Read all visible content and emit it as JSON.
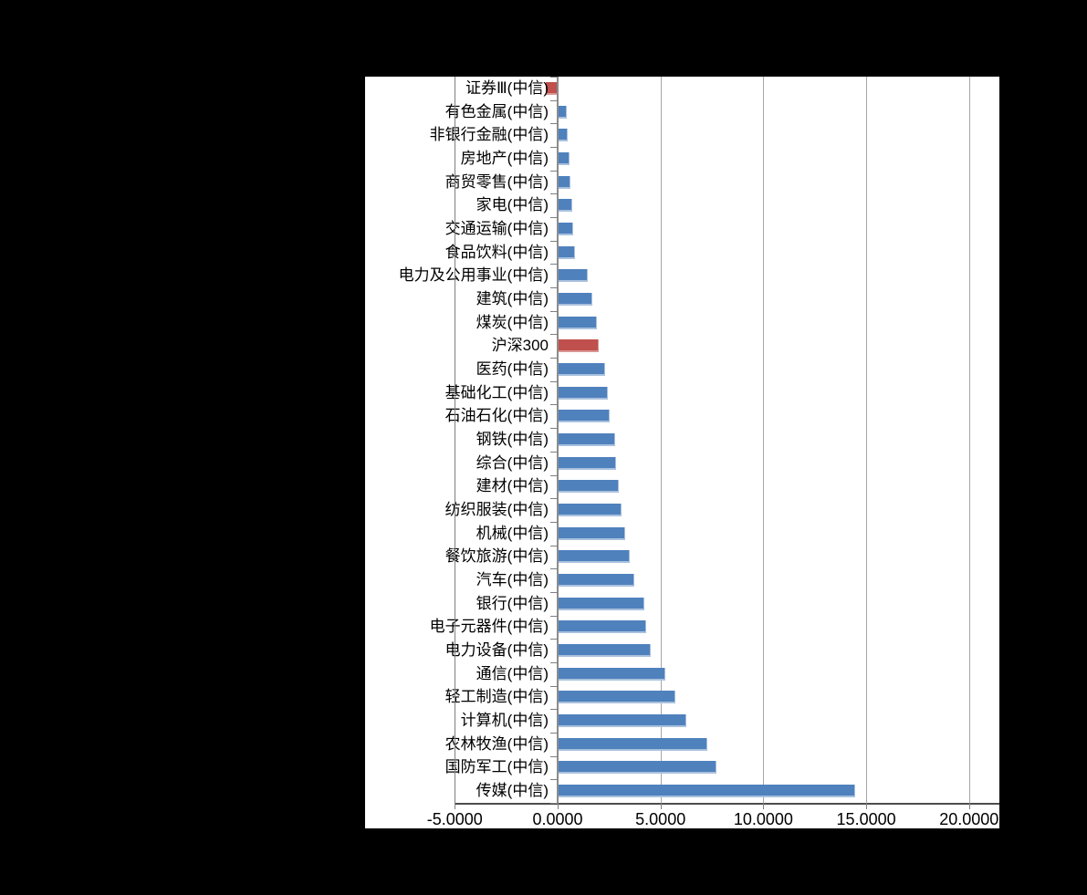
{
  "page": {
    "background_color": "#000000",
    "chart_background_color": "#ffffff"
  },
  "chart_data": {
    "type": "bar",
    "orientation": "horizontal",
    "title": "",
    "xlabel": "",
    "ylabel": "",
    "grid": "vertical-gridlines-on",
    "legend": "none",
    "xlim": [
      -5,
      21.5
    ],
    "x_tick_values": [
      -5,
      0,
      5,
      10,
      15,
      20
    ],
    "x_tick_labels": [
      "-5.0000",
      "0.0000",
      "5.0000",
      "10.0000",
      "15.0000",
      "20.0000"
    ],
    "categories": [
      "证券Ⅲ(中信)",
      "有色金属(中信)",
      "非银行金融(中信)",
      "房地产(中信)",
      "商贸零售(中信)",
      "家电(中信)",
      "交通运输(中信)",
      "食品饮料(中信)",
      "电力及公用事业(中信)",
      "建筑(中信)",
      "煤炭(中信)",
      "沪深300",
      "医药(中信)",
      "基础化工(中信)",
      "石油石化(中信)",
      "钢铁(中信)",
      "综合(中信)",
      "建材(中信)",
      "纺织服装(中信)",
      "机械(中信)",
      "餐饮旅游(中信)",
      "汽车(中信)",
      "银行(中信)",
      "电子元器件(中信)",
      "电力设备(中信)",
      "通信(中信)",
      "轻工制造(中信)",
      "计算机(中信)",
      "农林牧渔(中信)",
      "国防军工(中信)",
      "传媒(中信)"
    ],
    "values": [
      -0.6,
      0.4,
      0.45,
      0.55,
      0.58,
      0.65,
      0.72,
      0.78,
      1.4,
      1.65,
      1.85,
      1.93,
      2.28,
      2.4,
      2.48,
      2.75,
      2.8,
      2.92,
      3.05,
      3.22,
      3.48,
      3.68,
      4.15,
      4.25,
      4.5,
      5.17,
      5.7,
      6.19,
      7.25,
      7.69,
      14.43
    ],
    "highlight_indices": [
      0,
      11
    ],
    "series_color_default": "#4f81bd",
    "series_color_highlight": "#c0504d",
    "gridline_color": "#a6a6a6",
    "axis_color": "#7f7f7f"
  }
}
